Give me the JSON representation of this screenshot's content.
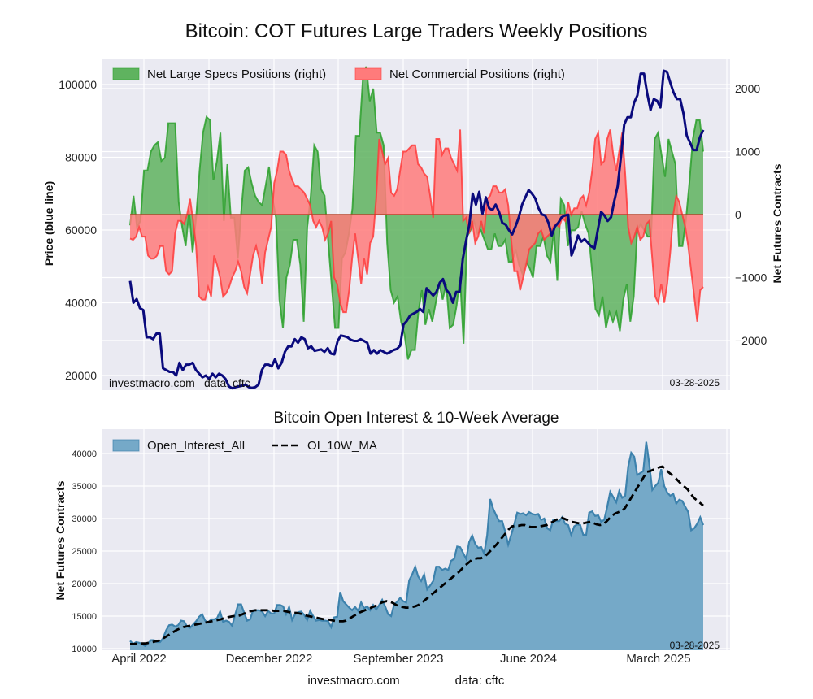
{
  "chart_data": [
    {
      "type": "area",
      "title": "Bitcoin: COT Futures Large Traders Weekly Positions",
      "ylabel_left": "Price (blue line)",
      "ylabel_right": "Net Futures Contracts",
      "ylim_left": [
        17000,
        106000
      ],
      "ylim_right": [
        -2750,
        2450
      ],
      "yticks_left": [
        "100000",
        "80000",
        "60000",
        "40000",
        "20000"
      ],
      "yticks_left_values": [
        100000,
        80000,
        60000,
        40000,
        20000
      ],
      "yticks_right": [
        "2000",
        "1000",
        "0",
        "−1000",
        "−2000"
      ],
      "yticks_right_values": [
        2000,
        1000,
        0,
        -1000,
        -2000
      ],
      "grid": true,
      "legend_position": "top-left",
      "start_week": "2022-03-15",
      "end_date_label": "03-28-2025",
      "watermark_left": "investmacro.com",
      "watermark_data": "data: cftc",
      "series": [
        {
          "name": "Net Large Specs Positions (right)",
          "color": "#2ca02c",
          "fill": "#5fb35f",
          "values": [
            -170,
            300,
            -200,
            -100,
            700,
            700,
            1000,
            1100,
            1150,
            850,
            900,
            1450,
            1450,
            1450,
            200,
            -200,
            -500,
            50,
            -600,
            -50,
            700,
            1300,
            1550,
            1500,
            550,
            850,
            1300,
            -100,
            800,
            -50,
            -50,
            -700,
            50,
            700,
            750,
            500,
            300,
            200,
            150,
            450,
            760,
            250,
            -50,
            -1350,
            -1800,
            -1000,
            -800,
            -400,
            -400,
            -800,
            -1700,
            -200,
            300,
            1100,
            1000,
            400,
            300,
            -400,
            -1100,
            -1800,
            -1800,
            -700,
            -600,
            -300,
            100,
            1250,
            1250,
            2150,
            2350,
            1800,
            2000,
            1300,
            1300,
            1100,
            -450,
            -1200,
            -1400,
            -1300,
            -1700,
            -1900,
            -2300,
            -2150,
            -2150,
            -1550,
            -1200,
            -1750,
            -1500,
            -1700,
            -1400,
            -1100,
            -1350,
            -1100,
            -1800,
            -1750,
            -1450,
            -1000,
            -2050,
            -350,
            -250,
            -100,
            -300,
            -250,
            -400,
            -550,
            -550,
            -300,
            -500,
            -500,
            -400,
            -750,
            -750,
            -550,
            -800,
            -950,
            -750,
            -850,
            -1000,
            -500,
            -500,
            -350,
            -650,
            -750,
            -250,
            -1050,
            250,
            150,
            -500,
            -250,
            -250,
            -200,
            50,
            -150,
            -300,
            -900,
            -1500,
            -1600,
            -1300,
            -1800,
            -1550,
            -1700,
            -1550,
            -1850,
            -1350,
            -1100,
            -1700,
            -1300,
            -250,
            -150,
            -250,
            -350,
            -350,
            1200,
            1300,
            950,
            600,
            1200,
            1000,
            800,
            -500,
            -500,
            -100,
            500,
            1200,
            1500,
            1500,
            1000
          ]
        },
        {
          "name": "Net Commercial Positions (right)",
          "color": "#ff3b3b",
          "fill": "#ff7b7b",
          "values": [
            -380,
            -400,
            -350,
            -200,
            -350,
            -350,
            -650,
            -700,
            -700,
            -650,
            -500,
            -500,
            -900,
            -950,
            -900,
            -300,
            -100,
            -100,
            -150,
            0,
            250,
            -100,
            -500,
            -1300,
            -1350,
            -1350,
            -1150,
            -1300,
            -650,
            -800,
            -1000,
            -1300,
            -1250,
            -1150,
            -1000,
            -900,
            -750,
            -900,
            -1150,
            -1250,
            -950,
            -650,
            -500,
            -700,
            -1100,
            -600,
            -400,
            -200,
            500,
            700,
            1000,
            1000,
            950,
            700,
            550,
            450,
            450,
            400,
            350,
            250,
            150,
            -100,
            -200,
            -100,
            -200,
            -400,
            -300,
            -100,
            -1000,
            -1100,
            -1400,
            -1550,
            -1550,
            -1200,
            -700,
            -300,
            -700,
            -1100,
            -700,
            -950,
            -450,
            -350,
            250,
            1200,
            1000,
            800,
            900,
            350,
            300,
            400,
            700,
            1000,
            1000,
            1050,
            1100,
            1100,
            800,
            750,
            650,
            600,
            300,
            -50,
            1200,
            1200,
            950,
            1050,
            1050,
            900,
            800,
            700,
            1350,
            -100,
            -50,
            -300,
            -100,
            -450,
            -350,
            -100,
            -300,
            250,
            300,
            450,
            450,
            350,
            350,
            400,
            150,
            -400,
            -900,
            -900,
            -1200,
            -1000,
            -800,
            -550,
            -500,
            -450,
            -300,
            -250,
            -400,
            -350,
            -300,
            -200,
            -150,
            -200,
            -50,
            -100,
            200,
            0,
            100,
            100,
            250,
            300,
            150,
            350,
            700,
            1200,
            1300,
            800,
            850,
            1200,
            1350,
            950,
            700,
            1000,
            1300,
            650,
            -200,
            -450,
            -350,
            -200,
            -400,
            -350,
            -150,
            -100,
            -700,
            -1300,
            -1400,
            -1100,
            -1400,
            -1100,
            -600,
            0,
            300,
            200,
            0,
            -200,
            -500,
            -900,
            -1300,
            -1700,
            -1200,
            -1150
          ]
        },
        {
          "name": "Bitcoin Price",
          "color": "#0a0a7d",
          "axis": "left",
          "values": [
            46000,
            40000,
            41000,
            38500,
            38000,
            30500,
            30500,
            30000,
            31500,
            31500,
            22000,
            21500,
            21000,
            21000,
            20000,
            23500,
            21500,
            23000,
            23000,
            23500,
            21500,
            20500,
            19500,
            20000,
            19000,
            20500,
            19500,
            20500,
            20000,
            19000,
            17000,
            16500,
            16800,
            17000,
            17200,
            17500,
            16800,
            16600,
            16800,
            17500,
            21500,
            23000,
            23000,
            22500,
            24500,
            22000,
            23500,
            26500,
            28000,
            28000,
            30000,
            29000,
            30500,
            30000,
            27500,
            28000,
            26800,
            27000,
            27200,
            26500,
            27500,
            26000,
            25800,
            29500,
            31000,
            30800,
            30500,
            29800,
            29500,
            29500,
            30000,
            29500,
            29000,
            26000,
            27000,
            26000,
            27000,
            26500,
            26000,
            26500,
            27000,
            27300,
            28200,
            34000,
            35000,
            36500,
            37000,
            37500,
            38300,
            37500,
            44000,
            43000,
            42000,
            43000,
            45500,
            46500,
            43500,
            42500,
            40000,
            43000,
            43000,
            52000,
            57000,
            61500,
            70000,
            67000,
            70500,
            64500,
            69000,
            66000,
            65500,
            67000,
            65000,
            62000,
            61500,
            60000,
            58800,
            61000,
            63500,
            67000,
            69000,
            71000,
            70000,
            68700,
            66000,
            64300,
            64000,
            62000,
            58500,
            61000,
            62000,
            63500,
            64000,
            64200,
            53000,
            55500,
            58500,
            56800,
            57500,
            56500,
            55500,
            55000,
            60000,
            65000,
            64000,
            62500,
            63500,
            68000,
            72000,
            80000,
            89000,
            91000,
            91000,
            95000,
            97000,
            103000,
            103000,
            97500,
            93000,
            96000,
            95500,
            93700,
            103800,
            103500,
            100500,
            97800,
            96000,
            96000,
            92000,
            86000,
            84000,
            82000,
            82000,
            85500,
            87500
          ]
        }
      ]
    },
    {
      "type": "area",
      "title": "Bitcoin Open Interest & 10-Week Average",
      "ylabel": "Net Futures Contracts",
      "ylim": [
        10000,
        43000
      ],
      "yticks": [
        "40000",
        "35000",
        "30000",
        "25000",
        "20000",
        "15000",
        "10000"
      ],
      "yticks_values": [
        40000,
        35000,
        30000,
        25000,
        20000,
        15000,
        10000
      ],
      "xtick_labels": [
        "April 2022",
        "December 2022",
        "September 2023",
        "June 2024",
        "March 2025"
      ],
      "xtick_weeks": [
        2.5,
        37.5,
        76,
        116,
        154.5
      ],
      "grid": true,
      "legend_position": "top-left",
      "end_date_label": "03-28-2025",
      "series": [
        {
          "name": "Open_Interest_All",
          "color": "#3d82ad",
          "fill": "#75a9c8",
          "values": [
            11200,
            10700,
            11000,
            10900,
            10700,
            10400,
            10800,
            11300,
            11300,
            11000,
            11000,
            11600,
            12800,
            13600,
            13700,
            13400,
            13600,
            14300,
            14200,
            13400,
            13200,
            13700,
            14200,
            14900,
            15300,
            14300,
            14000,
            14500,
            14500,
            14700,
            15700,
            14100,
            14300,
            14100,
            13500,
            15200,
            16800,
            16800,
            15500,
            14300,
            14500,
            15900,
            15900,
            15900,
            15700,
            15000,
            15800,
            15400,
            15400,
            16700,
            16700,
            16500,
            15300,
            16400,
            14400,
            15300,
            15600,
            15700,
            15200,
            14400,
            15800,
            15000,
            14300,
            14400,
            14300,
            14300,
            14200,
            13300,
            14800,
            14900,
            18700,
            17300,
            16800,
            16300,
            15900,
            16400,
            15800,
            17100,
            16200,
            16500,
            15900,
            16700,
            16000,
            16700,
            17500,
            16500,
            15300,
            15000,
            16800,
            17200,
            17800,
            17300,
            17100,
            20500,
            21400,
            22600,
            21100,
            20400,
            21400,
            19100,
            19700,
            20400,
            22600,
            22600,
            22100,
            22300,
            22100,
            23500,
            23800,
            25700,
            25600,
            24700,
            23800,
            26400,
            27400,
            26100,
            25500,
            25600,
            24600,
            27400,
            33000,
            31500,
            30500,
            29600,
            29600,
            28000,
            26000,
            27500,
            29100,
            30900,
            30700,
            30800,
            30500,
            31000,
            30700,
            30600,
            30700,
            29800,
            30000,
            28500,
            28200,
            29800,
            29600,
            29600,
            30200,
            29200,
            29000,
            27500,
            28800,
            29100,
            29000,
            27500,
            27500,
            30900,
            31100,
            30400,
            30500,
            29500,
            29800,
            31800,
            34100,
            33300,
            32500,
            34200,
            33200,
            33500,
            38000,
            40100,
            39500,
            36700,
            37000,
            37300,
            41800,
            38400,
            34400,
            35000,
            35500,
            37600,
            35000,
            34000,
            33500,
            33800,
            32300,
            32900,
            32700,
            31800,
            31000,
            28200,
            28500,
            29200,
            30200,
            29000
          ]
        },
        {
          "name": "OI_10W_MA",
          "color": "#000000",
          "values": [
            10700,
            10700,
            10750,
            10800,
            10800,
            10800,
            10900,
            11000,
            11100,
            11200,
            11400,
            11700,
            12000,
            12300,
            12600,
            12900,
            13100,
            13300,
            13400,
            13500,
            13600,
            13700,
            13800,
            13900,
            14000,
            14100,
            14200,
            14300,
            14400,
            14500,
            14700,
            14800,
            14900,
            15000,
            15000,
            15100,
            15300,
            15500,
            15700,
            15800,
            15900,
            15900,
            15900,
            15900,
            15900,
            15900,
            15800,
            15800,
            15800,
            15800,
            15700,
            15600,
            15500,
            15500,
            15400,
            15300,
            15100,
            15000,
            14900,
            14800,
            14700,
            14600,
            14500,
            14500,
            14400,
            14300,
            14200,
            14200,
            14200,
            14300,
            14600,
            14900,
            15200,
            15500,
            15700,
            15900,
            16100,
            16300,
            16500,
            16700,
            17000,
            17200,
            17300,
            17200,
            17000,
            16700,
            16500,
            16400,
            16300,
            16300,
            16400,
            16500,
            16700,
            17000,
            17400,
            17800,
            18200,
            18600,
            19000,
            19400,
            19800,
            20200,
            20600,
            21000,
            21400,
            21800,
            22300,
            22800,
            23200,
            23600,
            23800,
            23900,
            23900,
            24100,
            24500,
            25000,
            25500,
            26000,
            26600,
            27200,
            27800,
            28400,
            28800,
            28900,
            28900,
            29000,
            29000,
            28800,
            28700,
            28700,
            28700,
            28800,
            28900,
            29000,
            29300,
            29500,
            29800,
            30000,
            30100,
            29900,
            29700,
            29500,
            29400,
            29300,
            29200,
            29300,
            29400,
            29500,
            29300,
            29100,
            29000,
            29100,
            29500,
            30000,
            30500,
            30800,
            31000,
            31200,
            31600,
            32400,
            33200,
            34000,
            34800,
            35600,
            36400,
            37200,
            37300,
            37500,
            37600,
            37900,
            38000,
            37600,
            37100,
            36700,
            36300,
            35800,
            35300,
            34900,
            34500,
            33800,
            33200,
            32800,
            32400,
            32000
          ]
        }
      ]
    }
  ],
  "footer": {
    "site": "investmacro.com",
    "source": "data: cftc"
  }
}
